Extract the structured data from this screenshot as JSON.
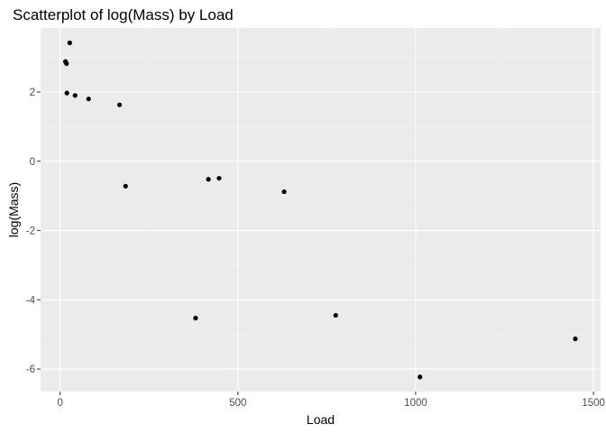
{
  "chart_data": {
    "type": "scatter",
    "title": "Scatterplot of log(Mass) by Load",
    "xlabel": "Load",
    "ylabel": "log(Mass)",
    "xlim": [
      -55,
      1520
    ],
    "ylim": [
      -6.65,
      3.85
    ],
    "x_ticks": [
      0,
      500,
      1000,
      1500
    ],
    "x_tick_labels": [
      "0",
      "500",
      "1000",
      "1500"
    ],
    "x_minor_ticks": [
      250,
      750,
      1250
    ],
    "y_ticks": [
      -6,
      -4,
      -2,
      0,
      2
    ],
    "y_tick_labels": [
      "-6",
      "-4",
      "-2",
      "0",
      "2"
    ],
    "y_minor_ticks": [
      -5,
      -3,
      -1,
      1,
      3
    ],
    "grid": true,
    "points": [
      {
        "x": 15,
        "y": 2.88
      },
      {
        "x": 18,
        "y": 2.82
      },
      {
        "x": 27,
        "y": 3.42
      },
      {
        "x": 19,
        "y": 1.97
      },
      {
        "x": 42,
        "y": 1.9
      },
      {
        "x": 80,
        "y": 1.8
      },
      {
        "x": 167,
        "y": 1.63
      },
      {
        "x": 184,
        "y": -0.72
      },
      {
        "x": 381,
        "y": -4.53
      },
      {
        "x": 417,
        "y": -0.52
      },
      {
        "x": 447,
        "y": -0.49
      },
      {
        "x": 630,
        "y": -0.88
      },
      {
        "x": 775,
        "y": -4.45
      },
      {
        "x": 1012,
        "y": -6.23
      },
      {
        "x": 1449,
        "y": -5.13
      }
    ]
  },
  "colors": {
    "panel_background": "#ebebeb",
    "grid_major": "#ffffff",
    "grid_minor": "#f5f5f5",
    "point": "#000000",
    "tick": "#333333"
  }
}
